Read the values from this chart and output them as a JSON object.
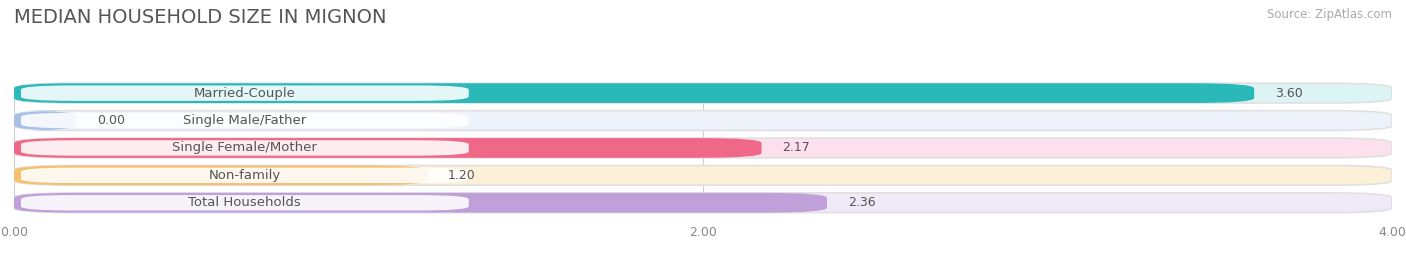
{
  "title": "MEDIAN HOUSEHOLD SIZE IN MIGNON",
  "source": "Source: ZipAtlas.com",
  "categories": [
    "Married-Couple",
    "Single Male/Father",
    "Single Female/Mother",
    "Non-family",
    "Total Households"
  ],
  "values": [
    3.6,
    0.0,
    2.17,
    1.2,
    2.36
  ],
  "bar_colors": [
    "#2ab8b8",
    "#a8c0e8",
    "#f06888",
    "#f5c070",
    "#c0a0d8"
  ],
  "bar_bg_colors": [
    "#ddf4f4",
    "#eef2fa",
    "#fce0ec",
    "#fdf0d8",
    "#f0eaf8"
  ],
  "outer_bg": "#f0f0f0",
  "xlim": [
    0,
    4.0
  ],
  "xticks": [
    0.0,
    2.0,
    4.0
  ],
  "xtick_labels": [
    "0.00",
    "2.00",
    "4.00"
  ],
  "label_fontsize": 9.5,
  "value_fontsize": 9.0,
  "title_fontsize": 14,
  "source_fontsize": 8.5,
  "background_color": "#ffffff"
}
